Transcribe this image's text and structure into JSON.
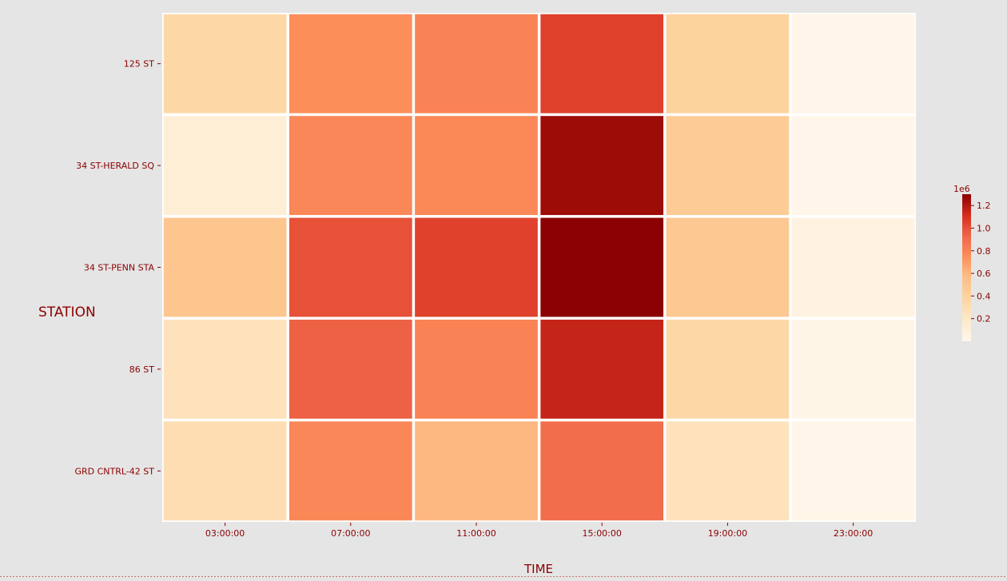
{
  "chart_data": {
    "type": "heatmap",
    "xlabel": "TIME",
    "ylabel": "STATION",
    "x_categories": [
      "03:00:00",
      "07:00:00",
      "11:00:00",
      "15:00:00",
      "19:00:00",
      "23:00:00"
    ],
    "y_categories": [
      "125 ST",
      "34 ST-HERALD SQ",
      "34 ST-PENN STA",
      "86 ST",
      "GRD CNTRL-42 ST"
    ],
    "values": [
      [
        350000,
        750000,
        800000,
        1050000,
        400000,
        20000
      ],
      [
        120000,
        780000,
        770000,
        1250000,
        450000,
        15000
      ],
      [
        500000,
        1000000,
        1050000,
        1300000,
        480000,
        60000
      ],
      [
        250000,
        950000,
        800000,
        1150000,
        350000,
        25000
      ],
      [
        300000,
        780000,
        600000,
        900000,
        250000,
        20000
      ]
    ],
    "colorbar": {
      "offset_label": "1e6",
      "ticks": [
        0.2,
        0.4,
        0.6,
        0.8,
        1.0,
        1.2
      ],
      "tick_labels": [
        "0.2",
        "0.4",
        "0.6",
        "0.8",
        "1.0",
        "1.2"
      ],
      "scale": 1000000,
      "vmin": 0.0,
      "vmax": 1.3
    },
    "colormap": "OrRd",
    "colors": {
      "background": "#e5e5e5",
      "plot_background": "#ffffff",
      "cell_border": "#ffffff",
      "text": "#8b0000"
    }
  }
}
